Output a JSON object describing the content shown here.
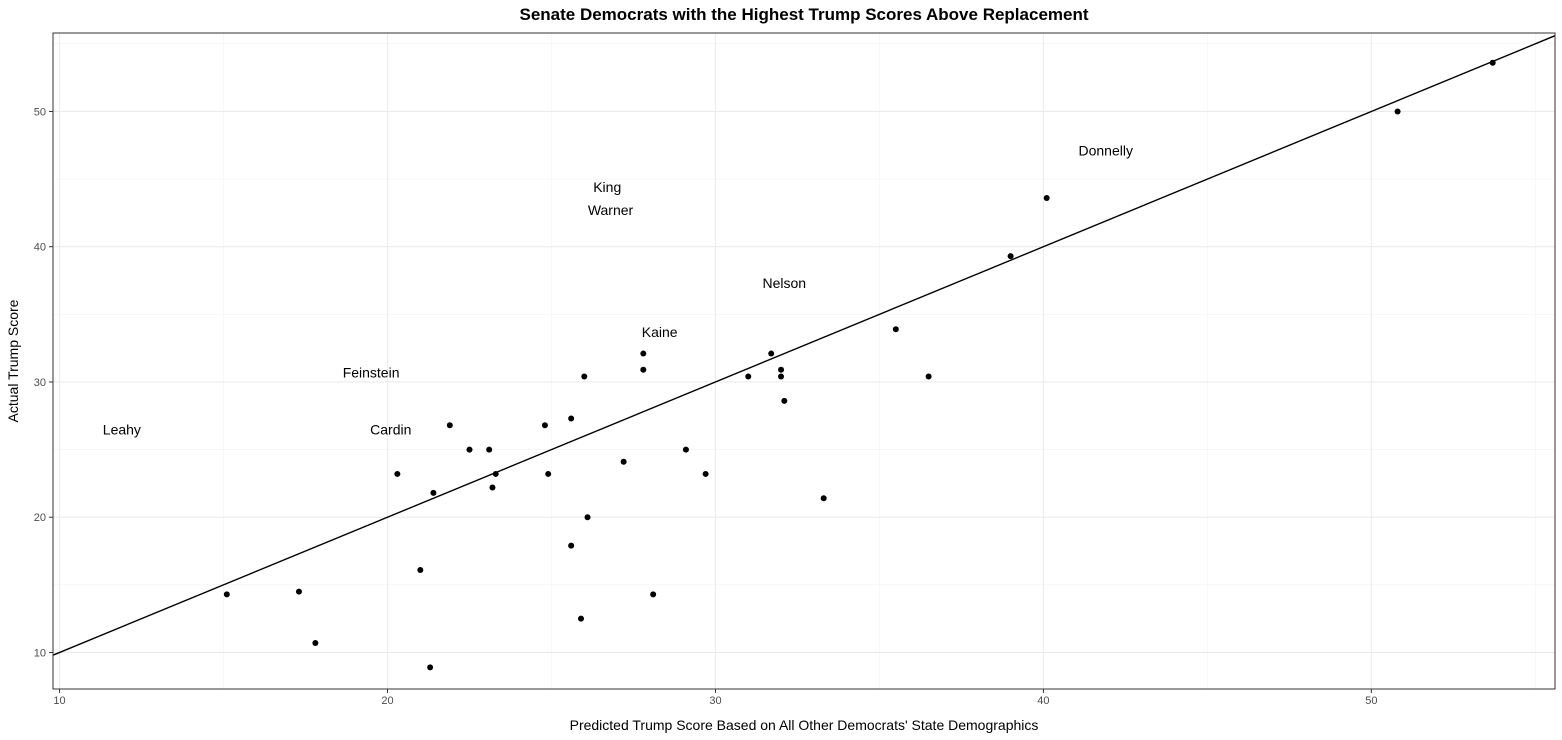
{
  "chart_data": {
    "type": "scatter",
    "title": "Senate Democrats with the Highest Trump Scores Above Replacement",
    "xlabel": "Predicted Trump Score Based on All Other Democrats' State Demographics",
    "ylabel": "Actual Trump Score",
    "xlim": [
      9.8,
      55.6
    ],
    "ylim": [
      7.3,
      55.8
    ],
    "x_ticks": [
      10,
      20,
      30,
      40,
      50
    ],
    "y_ticks": [
      10,
      20,
      30,
      40,
      50
    ],
    "x_minor_ticks": [
      15,
      25,
      35,
      45,
      55
    ],
    "y_minor_ticks": [
      15,
      25,
      35,
      45,
      55
    ],
    "grid": true,
    "reference_line": {
      "intercept": 0,
      "slope": 1
    },
    "points": [
      {
        "x": 15.1,
        "y": 14.3
      },
      {
        "x": 17.3,
        "y": 14.5
      },
      {
        "x": 17.8,
        "y": 10.7
      },
      {
        "x": 20.3,
        "y": 23.2
      },
      {
        "x": 21.0,
        "y": 16.1
      },
      {
        "x": 21.3,
        "y": 8.9
      },
      {
        "x": 21.4,
        "y": 21.8
      },
      {
        "x": 21.9,
        "y": 26.8
      },
      {
        "x": 22.5,
        "y": 25.0
      },
      {
        "x": 23.1,
        "y": 25.0
      },
      {
        "x": 23.2,
        "y": 22.2
      },
      {
        "x": 23.3,
        "y": 23.2
      },
      {
        "x": 24.8,
        "y": 26.8
      },
      {
        "x": 24.9,
        "y": 23.2
      },
      {
        "x": 25.6,
        "y": 17.9
      },
      {
        "x": 25.6,
        "y": 27.3
      },
      {
        "x": 25.9,
        "y": 12.5
      },
      {
        "x": 26.0,
        "y": 30.4
      },
      {
        "x": 26.1,
        "y": 20.0
      },
      {
        "x": 27.2,
        "y": 24.1
      },
      {
        "x": 27.8,
        "y": 32.1
      },
      {
        "x": 27.8,
        "y": 30.9
      },
      {
        "x": 28.1,
        "y": 14.3
      },
      {
        "x": 29.1,
        "y": 25.0
      },
      {
        "x": 29.7,
        "y": 23.2
      },
      {
        "x": 31.0,
        "y": 30.4
      },
      {
        "x": 31.7,
        "y": 32.1
      },
      {
        "x": 32.0,
        "y": 30.9
      },
      {
        "x": 32.0,
        "y": 30.4
      },
      {
        "x": 32.1,
        "y": 28.6
      },
      {
        "x": 33.3,
        "y": 21.4
      },
      {
        "x": 35.5,
        "y": 33.9
      },
      {
        "x": 36.5,
        "y": 30.4
      },
      {
        "x": 39.0,
        "y": 39.3
      },
      {
        "x": 40.1,
        "y": 43.6
      },
      {
        "x": 50.8,
        "y": 50.0
      },
      {
        "x": 53.7,
        "y": 53.6
      }
    ],
    "annotations": [
      {
        "text": "Leahy",
        "x": 11.9,
        "y": 26.5
      },
      {
        "text": "Cardin",
        "x": 20.1,
        "y": 26.5
      },
      {
        "text": "Feinstein",
        "x": 19.5,
        "y": 30.7
      },
      {
        "text": "Kaine",
        "x": 28.3,
        "y": 33.7
      },
      {
        "text": "Nelson",
        "x": 32.1,
        "y": 37.3
      },
      {
        "text": "Warner",
        "x": 26.8,
        "y": 42.7
      },
      {
        "text": "King",
        "x": 26.7,
        "y": 44.4
      },
      {
        "text": "Donnelly",
        "x": 41.9,
        "y": 47.1
      }
    ]
  }
}
